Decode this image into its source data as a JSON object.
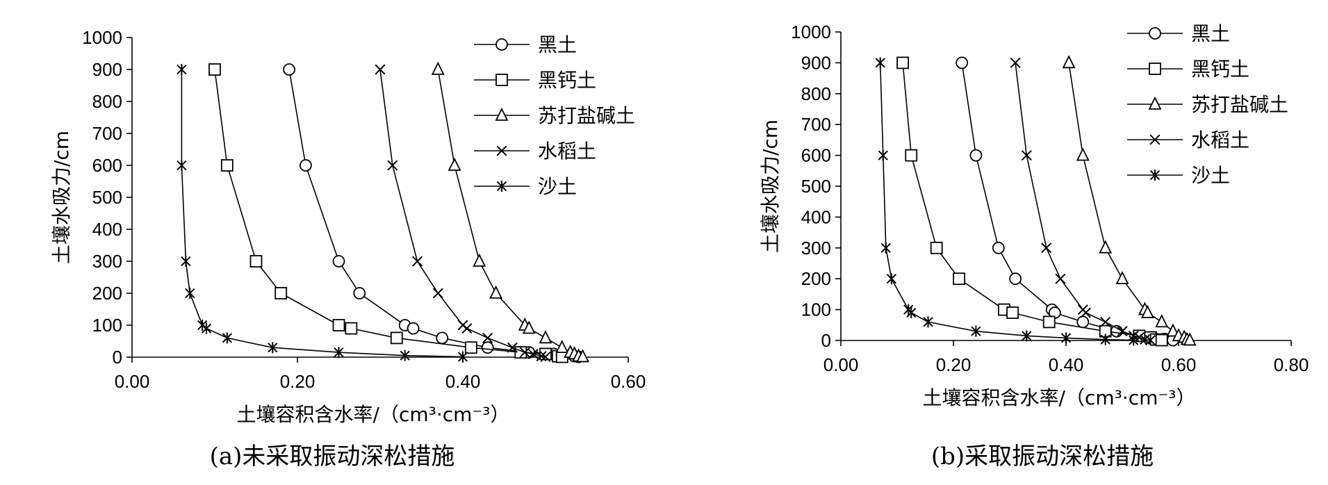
{
  "chart_data": [
    {
      "type": "line",
      "caption": "(a)未采取振动深松措施",
      "xlabel": "土壤容积含水率/（cm³·cm⁻³）",
      "ylabel": "土壤水吸力/cm",
      "xlim": [
        0,
        0.6
      ],
      "ylim": [
        0,
        1000
      ],
      "xticks": [
        "0.00",
        "0.20",
        "0.40",
        "0.60"
      ],
      "yticks": [
        "0",
        "100",
        "200",
        "300",
        "400",
        "500",
        "600",
        "700",
        "800",
        "900",
        "1000"
      ],
      "legend_position": "top-right",
      "series": [
        {
          "name": "黑土",
          "marker": "circle",
          "points": [
            [
              0.19,
              900
            ],
            [
              0.21,
              600
            ],
            [
              0.25,
              300
            ],
            [
              0.275,
              200
            ],
            [
              0.33,
              100
            ],
            [
              0.34,
              90
            ],
            [
              0.375,
              60
            ],
            [
              0.43,
              30
            ],
            [
              0.48,
              15
            ],
            [
              0.51,
              10
            ],
            [
              0.535,
              3
            ],
            [
              0.54,
              1
            ]
          ]
        },
        {
          "name": "黑钙土",
          "marker": "square",
          "points": [
            [
              0.1,
              900
            ],
            [
              0.115,
              600
            ],
            [
              0.15,
              300
            ],
            [
              0.18,
              200
            ],
            [
              0.25,
              100
            ],
            [
              0.265,
              90
            ],
            [
              0.32,
              60
            ],
            [
              0.41,
              30
            ],
            [
              0.47,
              15
            ],
            [
              0.5,
              10
            ],
            [
              0.515,
              3
            ],
            [
              0.52,
              1
            ]
          ]
        },
        {
          "name": "苏打盐碱土",
          "marker": "triangle",
          "points": [
            [
              0.37,
              900
            ],
            [
              0.39,
              600
            ],
            [
              0.42,
              300
            ],
            [
              0.44,
              200
            ],
            [
              0.475,
              100
            ],
            [
              0.48,
              90
            ],
            [
              0.5,
              60
            ],
            [
              0.52,
              30
            ],
            [
              0.53,
              15
            ],
            [
              0.535,
              10
            ],
            [
              0.54,
              3
            ],
            [
              0.545,
              1
            ]
          ]
        },
        {
          "name": "水稻土",
          "marker": "x",
          "points": [
            [
              0.3,
              900
            ],
            [
              0.315,
              600
            ],
            [
              0.345,
              300
            ],
            [
              0.37,
              200
            ],
            [
              0.4,
              100
            ],
            [
              0.405,
              90
            ],
            [
              0.43,
              60
            ],
            [
              0.46,
              30
            ],
            [
              0.475,
              15
            ],
            [
              0.485,
              10
            ],
            [
              0.495,
              3
            ],
            [
              0.5,
              1
            ]
          ]
        },
        {
          "name": "沙土",
          "marker": "asterisk",
          "points": [
            [
              0.06,
              900
            ],
            [
              0.06,
              600
            ],
            [
              0.065,
              300
            ],
            [
              0.07,
              200
            ],
            [
              0.085,
              100
            ],
            [
              0.09,
              90
            ],
            [
              0.115,
              60
            ],
            [
              0.17,
              30
            ],
            [
              0.25,
              15
            ],
            [
              0.33,
              5
            ],
            [
              0.4,
              1
            ]
          ]
        }
      ]
    },
    {
      "type": "line",
      "caption": "(b)采取振动深松措施",
      "xlabel": "土壤容积含水率/（cm³·cm⁻³）",
      "ylabel": "土壤水吸力/cm",
      "xlim": [
        0,
        0.8
      ],
      "ylim": [
        0,
        1000
      ],
      "xticks": [
        "0.00",
        "0.20",
        "0.40",
        "0.60",
        "0.80"
      ],
      "yticks": [
        "0",
        "100",
        "200",
        "300",
        "400",
        "500",
        "600",
        "700",
        "800",
        "900",
        "1000"
      ],
      "legend_position": "top-right",
      "series": [
        {
          "name": "黑土",
          "marker": "circle",
          "points": [
            [
              0.215,
              900
            ],
            [
              0.24,
              600
            ],
            [
              0.28,
              300
            ],
            [
              0.31,
              200
            ],
            [
              0.375,
              100
            ],
            [
              0.38,
              90
            ],
            [
              0.43,
              60
            ],
            [
              0.49,
              30
            ],
            [
              0.53,
              15
            ],
            [
              0.555,
              10
            ],
            [
              0.575,
              5
            ],
            [
              0.59,
              1
            ]
          ]
        },
        {
          "name": "黑钙土",
          "marker": "square",
          "points": [
            [
              0.11,
              900
            ],
            [
              0.125,
              600
            ],
            [
              0.17,
              300
            ],
            [
              0.21,
              200
            ],
            [
              0.29,
              100
            ],
            [
              0.305,
              90
            ],
            [
              0.37,
              60
            ],
            [
              0.47,
              30
            ],
            [
              0.53,
              15
            ],
            [
              0.55,
              10
            ],
            [
              0.56,
              3
            ],
            [
              0.57,
              1
            ]
          ]
        },
        {
          "name": "苏打盐碱土",
          "marker": "triangle",
          "points": [
            [
              0.405,
              900
            ],
            [
              0.43,
              600
            ],
            [
              0.47,
              300
            ],
            [
              0.5,
              200
            ],
            [
              0.54,
              100
            ],
            [
              0.545,
              90
            ],
            [
              0.57,
              60
            ],
            [
              0.59,
              30
            ],
            [
              0.6,
              15
            ],
            [
              0.61,
              10
            ],
            [
              0.615,
              3
            ],
            [
              0.62,
              1
            ]
          ]
        },
        {
          "name": "水稻土",
          "marker": "x",
          "points": [
            [
              0.31,
              900
            ],
            [
              0.33,
              600
            ],
            [
              0.365,
              300
            ],
            [
              0.39,
              200
            ],
            [
              0.43,
              100
            ],
            [
              0.435,
              90
            ],
            [
              0.47,
              60
            ],
            [
              0.5,
              30
            ],
            [
              0.52,
              15
            ],
            [
              0.53,
              10
            ],
            [
              0.54,
              3
            ],
            [
              0.55,
              1
            ]
          ]
        },
        {
          "name": "沙土",
          "marker": "asterisk",
          "points": [
            [
              0.07,
              900
            ],
            [
              0.075,
              600
            ],
            [
              0.08,
              300
            ],
            [
              0.09,
              200
            ],
            [
              0.12,
              100
            ],
            [
              0.125,
              90
            ],
            [
              0.155,
              60
            ],
            [
              0.24,
              30
            ],
            [
              0.33,
              15
            ],
            [
              0.4,
              8
            ],
            [
              0.47,
              3
            ],
            [
              0.52,
              1
            ]
          ]
        }
      ]
    }
  ]
}
